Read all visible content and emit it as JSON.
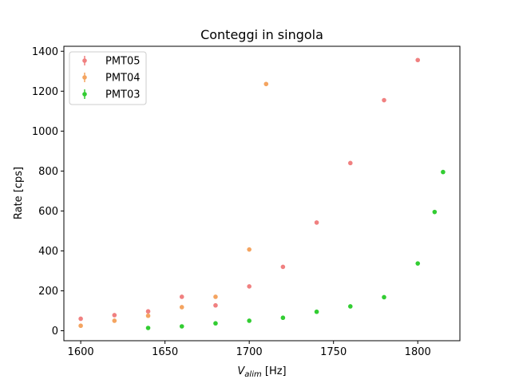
{
  "chart_data": {
    "type": "scatter",
    "title": "Conteggi in singola",
    "xlabel_main": "V",
    "xlabel_sub": "alim",
    "xlabel_unit": " [Hz]",
    "ylabel": "Rate [cps]",
    "xlim": [
      1590,
      1825
    ],
    "ylim": [
      -50,
      1425
    ],
    "xticks": [
      1600,
      1650,
      1700,
      1750,
      1800
    ],
    "yticks": [
      0,
      200,
      400,
      600,
      800,
      1000,
      1200,
      1400
    ],
    "legend_position": "top-left",
    "series": [
      {
        "name": "PMT05",
        "color": "#f08080",
        "points": [
          [
            1600,
            60
          ],
          [
            1620,
            78
          ],
          [
            1640,
            97
          ],
          [
            1660,
            170
          ],
          [
            1680,
            127
          ],
          [
            1700,
            222
          ],
          [
            1720,
            320
          ],
          [
            1740,
            542
          ],
          [
            1760,
            840
          ],
          [
            1780,
            1155
          ],
          [
            1800,
            1356
          ]
        ]
      },
      {
        "name": "PMT04",
        "color": "#f4a460",
        "points": [
          [
            1600,
            25
          ],
          [
            1620,
            50
          ],
          [
            1640,
            75
          ],
          [
            1660,
            118
          ],
          [
            1680,
            170
          ],
          [
            1700,
            407
          ],
          [
            1710,
            1236
          ]
        ]
      },
      {
        "name": "PMT03",
        "color": "#32cd32",
        "points": [
          [
            1640,
            14
          ],
          [
            1660,
            22
          ],
          [
            1680,
            37
          ],
          [
            1700,
            50
          ],
          [
            1720,
            65
          ],
          [
            1740,
            95
          ],
          [
            1760,
            122
          ],
          [
            1780,
            168
          ],
          [
            1800,
            337
          ],
          [
            1810,
            595
          ],
          [
            1815,
            795
          ]
        ]
      }
    ]
  }
}
